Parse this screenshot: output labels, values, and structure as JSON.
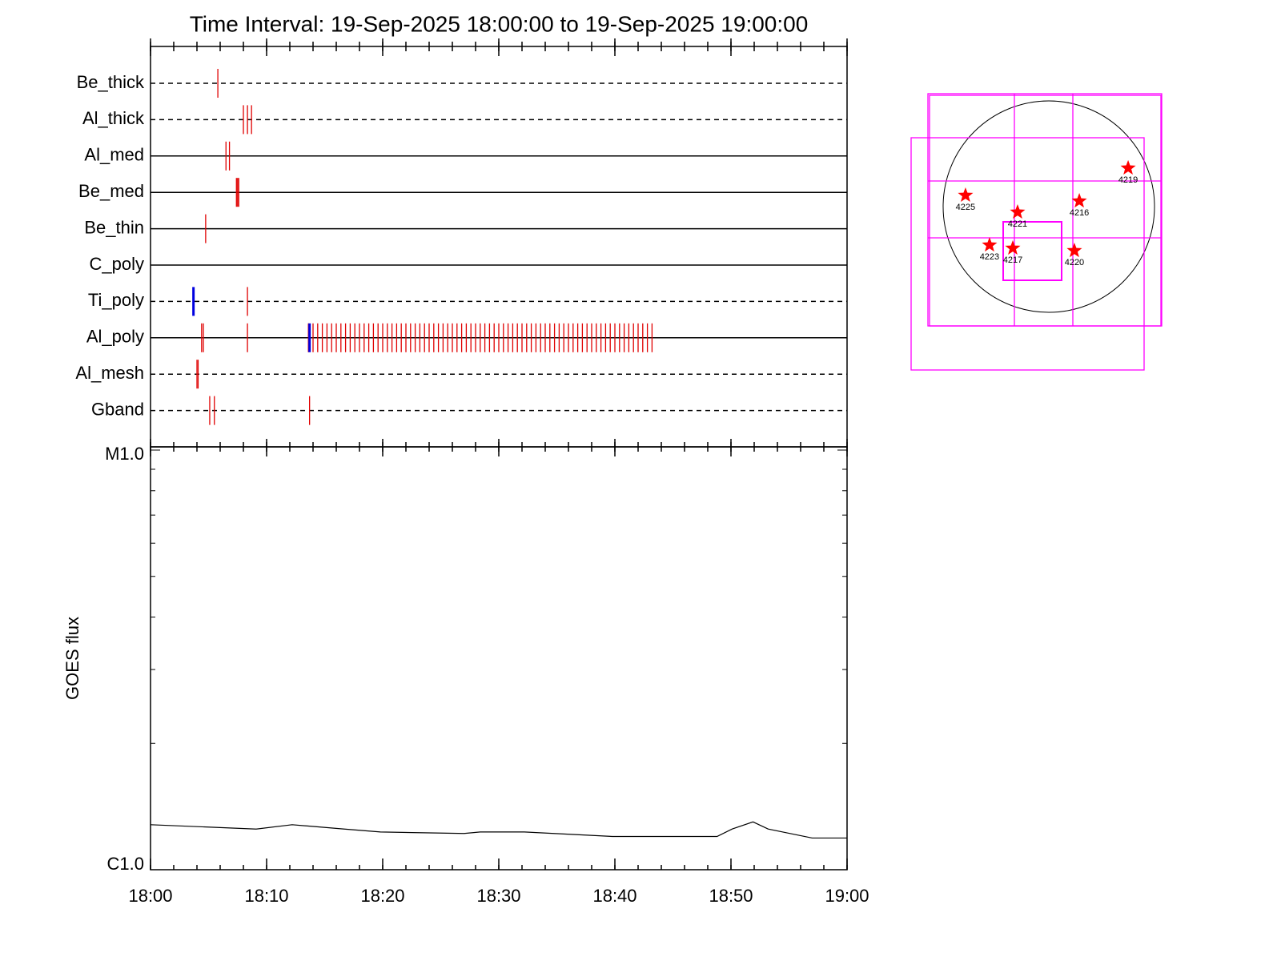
{
  "chart_data": [
    {
      "type": "events",
      "title": "Time Interval: 19-Sep-2025 18:00:00 to 19-Sep-2025 19:00:00",
      "categories": [
        "Be_thick",
        "Al_thick",
        "Al_med",
        "Be_med",
        "Be_thin",
        "C_poly",
        "Ti_poly",
        "Al_poly",
        "Al_mesh",
        "Gband"
      ],
      "line_styles": [
        "dashed",
        "dashed",
        "solid",
        "solid",
        "solid",
        "solid",
        "dashed",
        "solid",
        "dashed",
        "dashed"
      ],
      "events": [
        [
          5.8
        ],
        [
          8.0,
          8.35,
          8.7
        ],
        [
          6.5,
          6.8
        ],
        [
          7.4,
          7.5,
          7.6
        ],
        [
          4.75
        ],
        [],
        [
          8.35
        ],
        [
          4.4,
          4.55,
          8.35,
          13.6,
          14.0,
          14.4,
          14.8,
          15.2,
          15.6,
          16.0,
          16.4,
          16.8,
          17.2,
          17.6,
          18.0,
          18.4,
          18.8,
          19.2,
          19.6,
          20.0,
          20.4,
          20.8,
          21.2,
          21.6,
          22.0,
          22.4,
          22.8,
          23.2,
          23.6,
          24.0,
          24.4,
          24.8,
          25.2,
          25.6,
          26.0,
          26.4,
          26.8,
          27.2,
          27.6,
          28.0,
          28.4,
          28.8,
          29.2,
          29.6,
          30.0,
          30.4,
          30.8,
          31.2,
          31.6,
          32.0,
          32.4,
          32.8,
          33.2,
          33.6,
          34.0,
          34.4,
          34.8,
          35.2,
          35.6,
          36.0,
          36.4,
          36.8,
          37.2,
          37.6,
          38.0,
          38.4,
          38.8,
          39.2,
          39.6,
          40.0,
          40.4,
          40.8,
          41.2,
          41.6,
          42.0,
          42.4,
          42.8,
          43.2
        ],
        [
          4.0,
          4.1
        ],
        [
          5.1,
          5.5,
          13.7
        ]
      ],
      "blue_events": [
        [],
        [],
        [],
        [],
        [],
        [],
        [
          3.7
        ],
        [
          13.7
        ],
        [],
        []
      ],
      "color": "#e00000",
      "blue_color": "#0000e0",
      "xlim": [
        0,
        60
      ]
    },
    {
      "type": "line",
      "ylabel": "GOES flux",
      "x": [
        0,
        9.1,
        12.2,
        16.7,
        19.8,
        27,
        28.4,
        32.2,
        39.8,
        48.8,
        50.1,
        51.9,
        53.2,
        57,
        60
      ],
      "values": [
        1.28e-06,
        1.25e-06,
        1.28e-06,
        1.25e-06,
        1.23e-06,
        1.22e-06,
        1.23e-06,
        1.23e-06,
        1.2e-06,
        1.2e-06,
        1.25e-06,
        1.3e-06,
        1.25e-06,
        1.19e-06,
        1.19e-06
      ],
      "color": "#000000",
      "xlim": [
        0,
        60
      ],
      "xticks": [
        {
          "value": 0,
          "label": "18:00"
        },
        {
          "value": 10,
          "label": "18:10"
        },
        {
          "value": 20,
          "label": "18:20"
        },
        {
          "value": 30,
          "label": "18:30"
        },
        {
          "value": 40,
          "label": "18:40"
        },
        {
          "value": 50,
          "label": "18:50"
        },
        {
          "value": 60,
          "label": "19:00"
        }
      ],
      "ylim": [
        1e-06,
        1e-05
      ],
      "log_y": true,
      "yticks": [
        {
          "value": 1e-06,
          "label": "C1.0"
        },
        {
          "value": 1e-05,
          "label": "M1.0"
        }
      ]
    },
    {
      "type": "scatter",
      "labels": [
        "4225",
        "4221",
        "4216",
        "4219",
        "4223",
        "4217",
        "4220"
      ],
      "x": [
        -749,
        -281,
        274,
        713,
        -533,
        -324,
        230
      ],
      "values": [
        101,
        -50,
        50,
        346,
        -346,
        -374,
        -396
      ],
      "color": "#ff0000"
    }
  ]
}
